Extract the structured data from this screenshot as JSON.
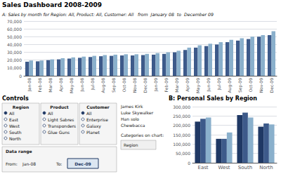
{
  "chart_data": [
    {
      "type": "bar",
      "title": "Sales Dashboard 2008-2009",
      "subtitle": "A: Sales by month for Region: All, Product: All, Customer: All   from  January 08  to  December 09",
      "categories": [
        "Jan-08",
        "Feb-08",
        "Mar-08",
        "Apr-08",
        "May-08",
        "Jun-08",
        "Jul-08",
        "Aug-08",
        "Sep-08",
        "Oct-08",
        "Nov-08",
        "Dec-08",
        "Jan-09",
        "Feb-09",
        "Mar-09",
        "Apr-09",
        "May-09",
        "Jun-09",
        "Jul-09",
        "Aug-09",
        "Sep-09",
        "Oct-09",
        "Nov-09",
        "Dec-09"
      ],
      "series": [
        {
          "color": "#3d5a8a",
          "values": [
            18000,
            18500,
            20000,
            21000,
            22000,
            23000,
            24000,
            25000,
            25500,
            26000,
            26000,
            26500,
            27000,
            28000,
            30000,
            33000,
            36000,
            38000,
            40000,
            43000,
            45000,
            47000,
            50000,
            52000
          ]
        },
        {
          "color": "#8ab0cc",
          "values": [
            19500,
            19500,
            21000,
            22500,
            23500,
            24500,
            25500,
            26500,
            27000,
            27500,
            27500,
            28000,
            29000,
            30000,
            32000,
            36000,
            39000,
            41000,
            43000,
            46000,
            48000,
            50000,
            52000,
            57000
          ]
        }
      ],
      "ylim": [
        0,
        70000
      ],
      "yticks": [
        0,
        {
          "value": 10000,
          "label": "10,000"
        },
        {
          "value": 20000,
          "label": "20,000"
        },
        {
          "value": 30000,
          "label": "30,000"
        },
        {
          "value": 40000,
          "label": "40,000"
        },
        {
          "value": 50000,
          "label": "50,000"
        },
        {
          "value": 60000,
          "label": "60,000"
        },
        {
          "value": 70000,
          "label": "70,000"
        }
      ],
      "grid": true,
      "annotations": [
        "Controls",
        "Region",
        "All",
        "East",
        "West",
        "South",
        "North",
        "Product",
        "All",
        "Light Sabres",
        "Transponders",
        "Glue Guns",
        "Customer",
        "All",
        "Enterprise",
        "Galaxy",
        "Planet",
        "Data range",
        "From:",
        "Jan-08",
        "To:",
        "Dec-09",
        "James Kirk",
        "Luke Skywalker",
        "Han solo",
        "Chewbacca",
        "Categories on chart:",
        "Region"
      ]
    },
    {
      "type": "bar",
      "title": "B: Personal Sales by Region",
      "categories": [
        "East",
        "West",
        "South",
        "North"
      ],
      "series": [
        {
          "color": "#1f3864",
          "values": [
            220000,
            128000,
            255000,
            193000
          ]
        },
        {
          "color": "#3d5a8a",
          "values": [
            235000,
            128000,
            268000,
            210000
          ]
        },
        {
          "color": "#8ab0cc",
          "values": [
            242000,
            162000,
            242000,
            205000
          ]
        }
      ],
      "ylim": [
        0,
        300000
      ],
      "yticks": [
        0,
        {
          "value": 50000,
          "label": "50,000"
        },
        {
          "value": 100000,
          "label": "100,000"
        },
        {
          "value": 150000,
          "label": "150,000"
        },
        {
          "value": 200000,
          "label": "200,000"
        },
        {
          "value": 250000,
          "label": "250,000"
        },
        {
          "value": 300000,
          "label": "300,000"
        }
      ],
      "grid": true
    }
  ]
}
